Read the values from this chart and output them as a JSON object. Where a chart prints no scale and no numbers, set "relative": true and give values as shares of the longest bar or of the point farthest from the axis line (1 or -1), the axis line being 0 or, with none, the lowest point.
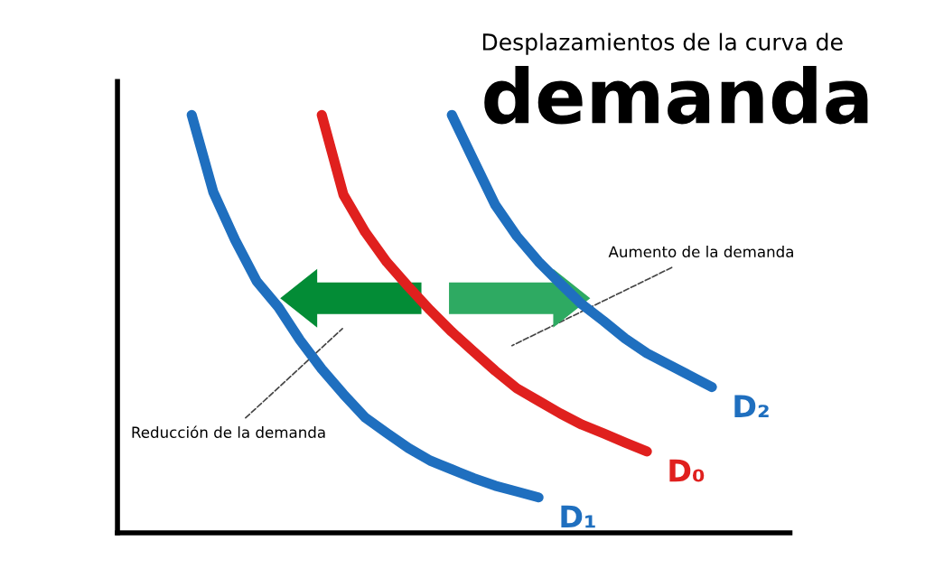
{
  "chart_data": {
    "type": "line",
    "title": "Desplazamientos de la curva de",
    "subtitle": "demanda",
    "relative": true,
    "legend": false,
    "marker": "none",
    "line_style": "solid",
    "annotations": [
      "Aumento de la demanda",
      "Reducción de la demanda"
    ],
    "categories": [
      null,
      null,
      null,
      null,
      null,
      null,
      null,
      null,
      null,
      null,
      null,
      null,
      null,
      null,
      null,
      null,
      null,
      null,
      null,
      null,
      null,
      null,
      null,
      null,
      null
    ],
    "series": [
      {
        "name": "D₁",
        "color": "#1f6fbf",
        "values": [
          1,
          0.815,
          0.701,
          0.602,
          0.54,
          0.461,
          0.392,
          0.332,
          0.276,
          0.239,
          0.203,
          0.173,
          0.152,
          0.131,
          0.113,
          0.099,
          0.085,
          null,
          null,
          null,
          null,
          null,
          null,
          null,
          null
        ]
      },
      {
        "name": "D₀",
        "color": "#e0201e",
        "values": [
          null,
          null,
          null,
          null,
          null,
          null,
          1,
          0.809,
          0.72,
          0.648,
          0.589,
          0.533,
          0.481,
          0.434,
          0.388,
          0.346,
          0.316,
          0.286,
          0.259,
          0.238,
          0.216,
          0.195,
          null,
          null,
          null
        ]
      },
      {
        "name": "D₂",
        "color": "#1f6fbf",
        "values": [
          null,
          null,
          null,
          null,
          null,
          null,
          null,
          null,
          null,
          null,
          null,
          null,
          1,
          0.892,
          0.785,
          0.71,
          0.649,
          0.597,
          0.547,
          0.507,
          0.465,
          0.43,
          0.403,
          0.376,
          0.349
        ]
      }
    ]
  }
}
